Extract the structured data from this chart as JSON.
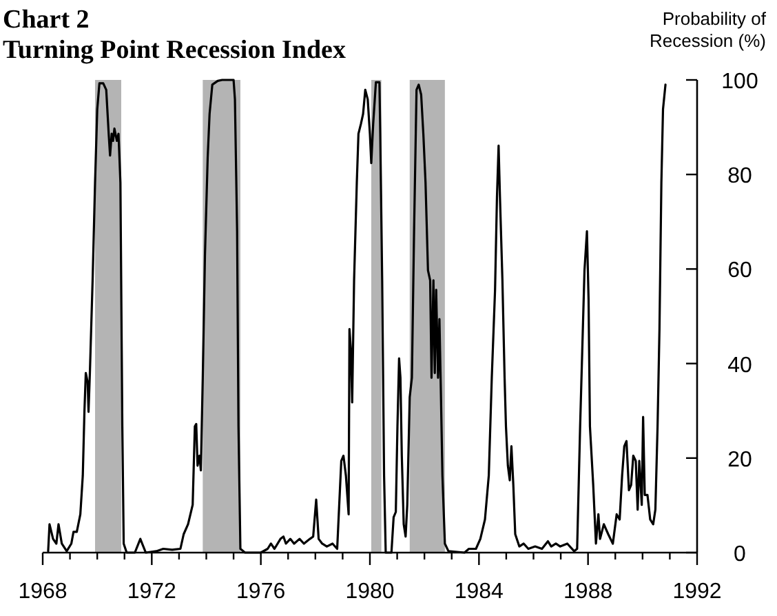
{
  "chart_data": {
    "type": "line",
    "title": "Chart 2",
    "subtitle": "Turning Point Recession Index",
    "ylabel": "Probability of Recession (%)",
    "xlim": [
      1968,
      1992
    ],
    "ylim": [
      0,
      100
    ],
    "xticks": [
      1968,
      {
        "value": 1969,
        "label": null
      },
      {
        "value": 1970,
        "label": null
      },
      {
        "value": 1971,
        "label": null
      },
      1972,
      {
        "value": 1973,
        "label": null
      },
      {
        "value": 1974,
        "label": null
      },
      {
        "value": 1975,
        "label": null
      },
      1976,
      {
        "value": 1977,
        "label": null
      },
      {
        "value": 1978,
        "label": null
      },
      {
        "value": 1979,
        "label": null
      },
      1980,
      {
        "value": 1981,
        "label": null
      },
      {
        "value": 1982,
        "label": null
      },
      {
        "value": 1983,
        "label": null
      },
      1984,
      {
        "value": 1985,
        "label": null
      },
      {
        "value": 1986,
        "label": null
      },
      {
        "value": 1987,
        "label": null
      },
      1988,
      {
        "value": 1989,
        "label": null
      },
      {
        "value": 1990,
        "label": null
      },
      {
        "value": 1991,
        "label": null
      },
      1992
    ],
    "yticks": [
      0,
      20,
      40,
      60,
      80,
      100
    ],
    "grid": false,
    "bands": [
      {
        "axis": "x",
        "from": 1969.92,
        "to": 1970.88,
        "color": "#b4b4b4"
      },
      {
        "axis": "x",
        "from": 1973.87,
        "to": 1975.25,
        "color": "#b4b4b4"
      },
      {
        "axis": "x",
        "from": 1980.05,
        "to": 1980.42,
        "color": "#b4b4b4"
      },
      {
        "axis": "x",
        "from": 1981.46,
        "to": 1982.75,
        "color": "#b4b4b4"
      }
    ],
    "series": [
      {
        "color": "#000000",
        "x": [
          1968.2,
          1968.25,
          1968.38,
          1968.5,
          1968.58,
          1968.7,
          1968.88,
          1969.05,
          1969.13,
          1969.25,
          1969.38,
          1969.47,
          1969.53,
          1969.58,
          1969.65,
          1969.68,
          1969.73,
          1969.83,
          1969.92,
          1970,
          1970.08,
          1970.22,
          1970.33,
          1970.42,
          1970.47,
          1970.53,
          1970.58,
          1970.63,
          1970.72,
          1970.78,
          1970.85,
          1970.92,
          1970.97,
          1971.08,
          1971.38,
          1971.58,
          1971.78,
          1972.17,
          1972.42,
          1972.75,
          1973.05,
          1973.17,
          1973.33,
          1973.5,
          1973.58,
          1973.63,
          1973.68,
          1973.75,
          1973.8,
          1973.87,
          1973.95,
          1974.05,
          1974.12,
          1974.22,
          1974.42,
          1974.58,
          1975,
          1975.05,
          1975.13,
          1975.18,
          1975.25,
          1975.42,
          1976,
          1976.25,
          1976.37,
          1976.5,
          1976.72,
          1976.83,
          1976.92,
          1977.08,
          1977.22,
          1977.42,
          1977.58,
          1977.8,
          1977.92,
          1978.03,
          1978.12,
          1978.25,
          1978.42,
          1978.63,
          1978.8,
          1978.95,
          1979.03,
          1979.12,
          1979.22,
          1979.25,
          1979.3,
          1979.35,
          1979.42,
          1979.52,
          1979.58,
          1979.67,
          1979.75,
          1979.83,
          1979.92,
          1980,
          1980.05,
          1980.12,
          1980.22,
          1980.35,
          1980.38,
          1980.45,
          1980.52,
          1980.58,
          1980.79,
          1980.87,
          1980.95,
          1981.01,
          1981.07,
          1981.12,
          1981.17,
          1981.24,
          1981.31,
          1981.37,
          1981.46,
          1981.54,
          1981.62,
          1981.71,
          1981.79,
          1981.88,
          1981.96,
          1982.04,
          1982.13,
          1982.21,
          1982.26,
          1982.33,
          1982.38,
          1982.43,
          1982.5,
          1982.55,
          1982.6,
          1982.66,
          1982.75,
          1982.88,
          1983.47,
          1983.63,
          1983.89,
          1984.05,
          1984.22,
          1984.36,
          1984.47,
          1984.59,
          1984.66,
          1984.72,
          1984.77,
          1984.86,
          1984.94,
          1984.99,
          1985.06,
          1985.13,
          1985.19,
          1985.26,
          1985.33,
          1985.48,
          1985.64,
          1985.81,
          1986.06,
          1986.31,
          1986.53,
          1986.65,
          1986.82,
          1986.98,
          1987.24,
          1987.49,
          1987.6,
          1987.71,
          1987.81,
          1987.87,
          1987.96,
          1988.02,
          1988.07,
          1988.19,
          1988.29,
          1988.38,
          1988.44,
          1988.58,
          1988.74,
          1988.91,
          1989.05,
          1989.16,
          1989.25,
          1989.33,
          1989.41,
          1989.5,
          1989.58,
          1989.66,
          1989.75,
          1989.82,
          1989.88,
          1989.97,
          1990.02,
          1990.08,
          1990.18,
          1990.28,
          1990.39,
          1990.47,
          1990.55,
          1990.62,
          1990.69,
          1990.75,
          1990.84
        ],
        "values": [
          0.3,
          6.0,
          2.9,
          1.9,
          6.0,
          1.9,
          0.3,
          1.9,
          4.4,
          4.4,
          8.1,
          16.3,
          29.8,
          38.0,
          36.0,
          29.8,
          38.0,
          57.6,
          78.3,
          93.8,
          99.3,
          99.3,
          97.9,
          88.6,
          84.0,
          88.6,
          87.1,
          89.7,
          87.1,
          88.6,
          78.3,
          26.7,
          1.9,
          0,
          0,
          2.9,
          0,
          0.3,
          0.8,
          0.6,
          0.8,
          3.9,
          6.0,
          10.1,
          26.7,
          27.2,
          18.4,
          20.5,
          17.4,
          37.0,
          62.8,
          83.5,
          92.8,
          99.0,
          99.8,
          100,
          100,
          95.9,
          68.0,
          26.7,
          0.8,
          0,
          0,
          0.8,
          1.9,
          0.8,
          2.9,
          3.4,
          1.9,
          2.9,
          1.9,
          2.9,
          1.9,
          2.9,
          3.4,
          11.2,
          2.9,
          1.9,
          1.3,
          1.9,
          0.8,
          19.4,
          20.5,
          16.3,
          8.1,
          47.3,
          43.2,
          31.8,
          57.6,
          78.3,
          88.6,
          90.7,
          92.8,
          97.9,
          95.9,
          88.6,
          82.4,
          90.7,
          99.5,
          99.5,
          88.6,
          57.6,
          16.3,
          0,
          0,
          7.5,
          8.6,
          26.7,
          41.1,
          37.0,
          20.5,
          6.0,
          3.4,
          10.1,
          32.9,
          37.0,
          68.0,
          97.9,
          99.0,
          96.9,
          88.6,
          78.3,
          59.7,
          57.6,
          37.0,
          57.6,
          38.0,
          55.6,
          37.0,
          49.4,
          34.9,
          16.3,
          1.9,
          0.3,
          0,
          0.8,
          0.8,
          2.9,
          7.0,
          16.3,
          37.0,
          55.6,
          75.2,
          86.1,
          75.2,
          57.6,
          37.0,
          26.7,
          18.4,
          15.3,
          22.5,
          14.3,
          3.9,
          1.3,
          1.9,
          0.8,
          1.3,
          0.8,
          2.4,
          1.3,
          1.9,
          1.3,
          1.9,
          0.3,
          0.8,
          26.7,
          47.3,
          59.7,
          68.0,
          53.5,
          26.7,
          14.3,
          1.9,
          8.1,
          2.9,
          6.0,
          3.9,
          1.9,
          8.1,
          7.0,
          16.3,
          22.5,
          23.6,
          13.2,
          14.3,
          20.5,
          19.4,
          9.1,
          19.4,
          10.1,
          28.7,
          12.2,
          12.2,
          7.0,
          6.0,
          9.1,
          26.7,
          47.3,
          78.3,
          93.8,
          99.0
        ]
      }
    ]
  }
}
